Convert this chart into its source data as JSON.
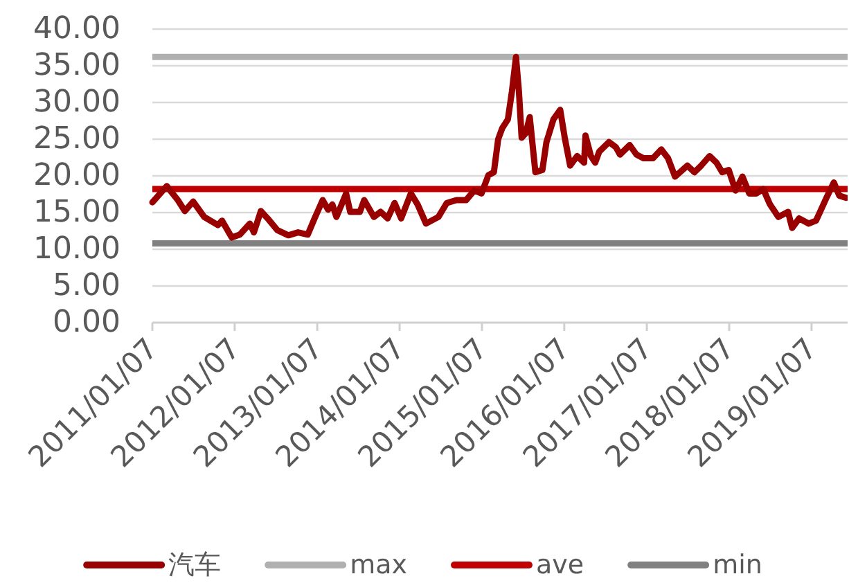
{
  "chart_data": {
    "type": "line",
    "x": [
      "2011-01-07",
      "2011-03-12",
      "2011-04-30",
      "2011-05-31",
      "2011-07-07",
      "2011-08-25",
      "2011-10-25",
      "2011-11-12",
      "2011-12-25",
      "2012-01-30",
      "2012-03-14",
      "2012-04-01",
      "2012-05-02",
      "2012-06-01",
      "2012-07-14",
      "2012-09-01",
      "2012-10-14",
      "2012-11-26",
      "2012-12-26",
      "2013-01-31",
      "2013-02-24",
      "2013-03-15",
      "2013-04-02",
      "2013-05-15",
      "2013-06-02",
      "2013-07-15",
      "2013-08-03",
      "2013-09-15",
      "2013-10-15",
      "2013-11-15",
      "2013-12-16",
      "2014-01-14",
      "2014-02-26",
      "2014-03-28",
      "2014-05-04",
      "2014-06-28",
      "2014-08-04",
      "2014-09-16",
      "2014-10-29",
      "2014-12-04",
      "2015-01-05",
      "2015-02-05",
      "2015-03-01",
      "2015-03-20",
      "2015-04-07",
      "2015-05-02",
      "2015-05-20",
      "2015-06-07",
      "2015-06-20",
      "2015-07-02",
      "2015-07-20",
      "2015-08-07",
      "2015-09-01",
      "2015-10-02",
      "2015-10-20",
      "2015-11-20",
      "2015-12-20",
      "2016-01-09",
      "2016-02-02",
      "2016-03-04",
      "2016-04-04",
      "2016-04-10",
      "2016-05-04",
      "2016-05-23",
      "2016-06-10",
      "2016-07-23",
      "2016-08-23",
      "2016-09-10",
      "2016-10-23",
      "2016-11-22",
      "2016-12-23",
      "2017-02-03",
      "2017-03-12",
      "2017-04-11",
      "2017-05-12",
      "2017-07-06",
      "2017-08-06",
      "2017-09-05",
      "2017-10-12",
      "2017-11-12",
      "2017-12-07",
      "2018-01-05",
      "2018-02-04",
      "2018-03-07",
      "2018-04-06",
      "2018-05-07",
      "2018-06-07",
      "2018-07-07",
      "2018-08-13",
      "2018-09-25",
      "2018-10-13",
      "2018-11-13",
      "2018-12-26",
      "2019-01-27",
      "2019-02-14",
      "2019-03-17",
      "2019-04-16",
      "2019-05-10",
      "2019-06-10"
    ],
    "series": [
      {
        "name": "汽车",
        "color": "#990000",
        "values": [
          16.4,
          18.6,
          16.7,
          15.2,
          16.5,
          14.4,
          13.3,
          13.9,
          11.6,
          12.0,
          13.5,
          12.3,
          15.2,
          14.2,
          12.6,
          11.9,
          12.3,
          12.0,
          14.2,
          16.7,
          15.4,
          16.1,
          14.4,
          17.6,
          15.1,
          15.1,
          16.7,
          14.4,
          15.1,
          14.2,
          16.3,
          14.2,
          17.6,
          16.1,
          13.5,
          14.4,
          16.3,
          16.7,
          16.7,
          18.0,
          17.6,
          20.1,
          20.5,
          25.0,
          26.5,
          27.7,
          31.5,
          36.2,
          31.5,
          25.2,
          25.8,
          28.0,
          20.5,
          20.8,
          24.6,
          27.7,
          29.0,
          25.2,
          21.4,
          22.7,
          21.8,
          25.5,
          22.7,
          21.8,
          23.3,
          24.6,
          23.9,
          22.9,
          24.2,
          22.9,
          22.4,
          22.4,
          23.6,
          22.4,
          19.9,
          21.4,
          20.5,
          21.4,
          22.7,
          21.8,
          20.5,
          20.8,
          18.0,
          19.9,
          17.6,
          17.6,
          18.2,
          16.1,
          14.4,
          15.1,
          12.9,
          14.2,
          13.5,
          13.9,
          15.1,
          17.2,
          19.1,
          17.3,
          17.0
        ]
      }
    ],
    "xlim": [
      "2011-01-07",
      "2019-06-16"
    ],
    "xticks": [
      {
        "value": "2011-01-07",
        "label": "2011/01/07"
      },
      {
        "value": "2012-01-07",
        "label": "2012/01/07"
      },
      {
        "value": "2013-01-07",
        "label": "2013/01/07"
      },
      {
        "value": "2014-01-07",
        "label": "2014/01/07"
      },
      {
        "value": "2015-01-07",
        "label": "2015/01/07"
      },
      {
        "value": "2016-01-07",
        "label": "2016/01/07"
      },
      {
        "value": "2017-01-07",
        "label": "2017/01/07"
      },
      {
        "value": "2018-01-07",
        "label": "2018/01/07"
      },
      {
        "value": "2019-01-07",
        "label": "2019/01/07"
      }
    ],
    "ylim": [
      0,
      40
    ],
    "yticks": [
      {
        "value": 0,
        "label": "0.00"
      },
      {
        "value": 5,
        "label": "5.00"
      },
      {
        "value": 10,
        "label": "10.00"
      },
      {
        "value": 15,
        "label": "15.00"
      },
      {
        "value": 20,
        "label": "20.00"
      },
      {
        "value": 25,
        "label": "25.00"
      },
      {
        "value": 30,
        "label": "30.00"
      },
      {
        "value": 35,
        "label": "35.00"
      },
      {
        "value": 40,
        "label": "40.00"
      }
    ],
    "ref_lines": [
      {
        "axis": "y",
        "value": 36.2,
        "label": "max",
        "color": "#b0b0b0"
      },
      {
        "axis": "y",
        "value": 18.2,
        "label": "ave",
        "color": "#c00000"
      },
      {
        "axis": "y",
        "value": 10.8,
        "label": "min",
        "color": "#808080"
      }
    ],
    "grid": "y",
    "legend": "bottom"
  }
}
